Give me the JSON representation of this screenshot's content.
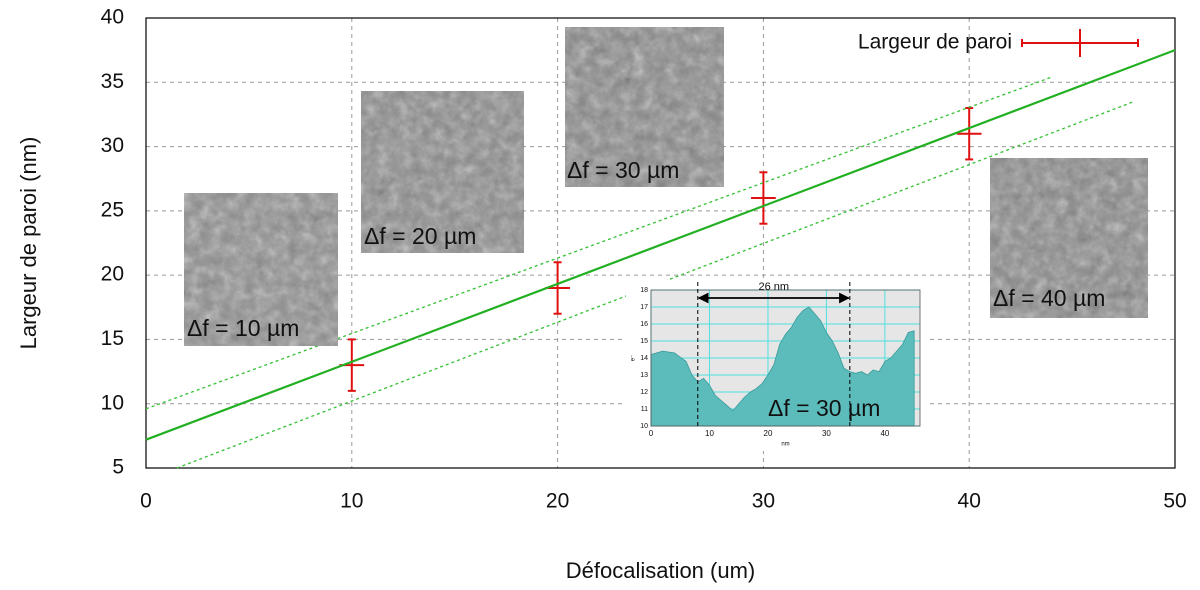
{
  "chart_data": [
    {
      "type": "line",
      "xlabel": "Défocalisation (um)",
      "ylabel": "Largeur de paroi (nm)",
      "xlim": [
        0,
        50
      ],
      "ylim": [
        5,
        40
      ],
      "xticks": [
        0,
        10,
        20,
        30,
        40,
        50
      ],
      "yticks": [
        5,
        10,
        15,
        20,
        25,
        30,
        35,
        40
      ],
      "grid": true,
      "legend": "upper right",
      "series": [
        {
          "name": "Largeur de paroi",
          "color": "#e01010",
          "x": [
            10,
            20,
            30,
            40
          ],
          "values": [
            13,
            19,
            26,
            31
          ],
          "yerr": [
            2,
            2,
            2,
            2
          ],
          "xerr": [
            0.6,
            0.6,
            0.6,
            0.6
          ]
        },
        {
          "color": "#22b022",
          "x": [
            0,
            50
          ],
          "values": [
            7.2,
            37.5
          ]
        },
        {
          "color": "#33c033",
          "dash": "dotted",
          "x": [
            0,
            44
          ],
          "values": [
            9.6,
            35.4
          ]
        },
        {
          "color": "#33c033",
          "dash": "dotted",
          "x": [
            1.5,
            48
          ],
          "values": [
            5,
            33.5
          ]
        }
      ],
      "annotations": [
        "Δf = 10 µm",
        "Δf = 20 µm",
        "Δf = 30 µm",
        "Δf = 40 µm"
      ]
    },
    {
      "type": "area",
      "xlabel": "nm",
      "ylabel": "e⁻",
      "xlim": [
        0,
        46
      ],
      "ylim": [
        10,
        18
      ],
      "xticks": [
        0,
        10,
        20,
        30,
        40
      ],
      "yticks": [
        10,
        11,
        12,
        13,
        14,
        15,
        16,
        17,
        18
      ],
      "color": "#5cbcbc",
      "grid": true,
      "x": [
        0,
        2,
        4,
        6,
        7,
        8,
        9,
        10,
        11,
        12,
        13,
        14,
        15,
        16,
        17,
        18,
        19,
        20,
        21,
        22,
        23,
        24,
        25,
        26,
        27,
        28,
        29,
        30,
        31,
        32,
        33,
        34,
        35,
        36,
        37,
        38,
        39,
        40,
        41,
        42,
        43,
        44,
        45
      ],
      "values": [
        14.2,
        14.4,
        14.3,
        13.8,
        13.0,
        12.6,
        12.8,
        12.4,
        11.8,
        11.5,
        11.2,
        10.9,
        11.3,
        11.7,
        12.0,
        12.2,
        12.5,
        13.0,
        13.6,
        14.8,
        15.4,
        15.8,
        16.4,
        16.8,
        17.0,
        16.6,
        16.2,
        15.5,
        15.0,
        14.3,
        13.4,
        13.2,
        13.1,
        13.2,
        13.0,
        13.3,
        13.2,
        13.8,
        14.0,
        14.4,
        14.8,
        15.5,
        15.6
      ],
      "markers": [
        8,
        34
      ],
      "annotation": "26 nm",
      "label": "Δf = 30 µm"
    }
  ]
}
